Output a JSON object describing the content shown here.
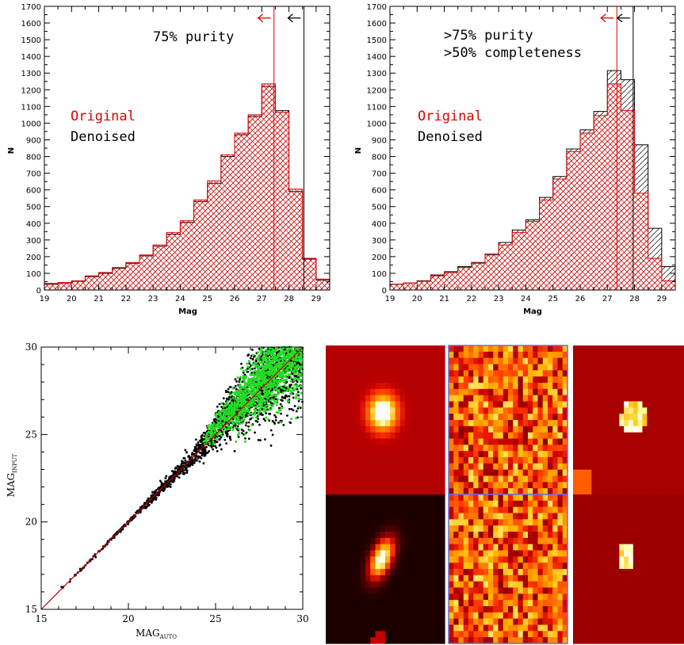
{
  "colors": {
    "original": "#e00000",
    "denoised": "#000000",
    "scatter_black": "#000000",
    "scatter_green": "#22dd22",
    "line": "#c00000"
  },
  "chart_data": [
    {
      "type": "bar",
      "subtype": "histogram",
      "xlabel": "Mag",
      "ylabel": "N",
      "xlim": [
        19,
        29.5
      ],
      "ylim": [
        0,
        1700
      ],
      "x_ticks": [
        "19",
        "20",
        "21",
        "22",
        "23",
        "24",
        "25",
        "26",
        "27",
        "28",
        "29"
      ],
      "y_ticks": [
        "0",
        "100",
        "200",
        "300",
        "400",
        "500",
        "600",
        "700",
        "800",
        "900",
        "1000",
        "1100",
        "1200",
        "1300",
        "1400",
        "1500",
        "1600",
        "1700"
      ],
      "bin_edges": [
        19,
        19.5,
        20,
        20.5,
        21,
        21.5,
        22,
        22.5,
        23,
        23.5,
        24,
        24.5,
        25,
        25.5,
        26,
        26.5,
        27,
        27.5,
        28,
        28.5,
        29,
        29.5
      ],
      "series": [
        {
          "name": "Original",
          "values": [
            40,
            45,
            55,
            85,
            105,
            135,
            165,
            210,
            270,
            345,
            415,
            540,
            655,
            810,
            940,
            1050,
            1235,
            1065,
            605,
            190,
            65
          ]
        },
        {
          "name": "Denoised",
          "values": [
            35,
            42,
            52,
            80,
            100,
            130,
            160,
            205,
            262,
            335,
            405,
            530,
            640,
            800,
            930,
            1040,
            1220,
            1075,
            590,
            185,
            60
          ]
        }
      ],
      "cutoffs": [
        {
          "series": "Original",
          "x": 27.45
        },
        {
          "series": "Denoised",
          "x": 28.55
        }
      ],
      "annotations": [
        "75% purity"
      ],
      "legend": [
        "Original",
        "Denoised"
      ]
    },
    {
      "type": "bar",
      "subtype": "histogram",
      "xlabel": "Mag",
      "ylabel": "N",
      "xlim": [
        19,
        29.5
      ],
      "ylim": [
        0,
        1700
      ],
      "x_ticks": [
        "19",
        "20",
        "21",
        "22",
        "23",
        "24",
        "25",
        "26",
        "27",
        "28",
        "29"
      ],
      "y_ticks": [
        "0",
        "100",
        "200",
        "300",
        "400",
        "500",
        "600",
        "700",
        "800",
        "900",
        "1000",
        "1100",
        "1200",
        "1300",
        "1400",
        "1500",
        "1600",
        "1700"
      ],
      "bin_edges": [
        19,
        19.5,
        20,
        20.5,
        21,
        21.5,
        22,
        22.5,
        23,
        23.5,
        24,
        24.5,
        25,
        25.5,
        26,
        26.5,
        27,
        27.5,
        28,
        28.5,
        29,
        29.5
      ],
      "series": [
        {
          "name": "Original",
          "values": [
            35,
            42,
            52,
            85,
            105,
            135,
            160,
            210,
            270,
            345,
            410,
            540,
            665,
            830,
            940,
            1045,
            1235,
            1075,
            580,
            190,
            55
          ]
        },
        {
          "name": "Denoised",
          "values": [
            35,
            42,
            55,
            90,
            110,
            140,
            165,
            215,
            285,
            360,
            420,
            555,
            680,
            845,
            960,
            1070,
            1315,
            1260,
            870,
            370,
            140
          ]
        }
      ],
      "cutoffs": [
        {
          "series": "Original",
          "x": 27.35
        },
        {
          "series": "Denoised",
          "x": 27.95
        }
      ],
      "annotations": [
        ">75% purity",
        ">50% completeness"
      ],
      "legend": [
        "Original",
        "Denoised"
      ]
    },
    {
      "type": "scatter",
      "xlabel": "MAG",
      "xlabel_sub": "AUTO",
      "ylabel": "MAG",
      "ylabel_sub": "INPUT",
      "xlim": [
        15,
        30
      ],
      "ylim": [
        15,
        30
      ],
      "x_ticks": [
        "15",
        "20",
        "25",
        "30"
      ],
      "y_ticks": [
        "15",
        "20",
        "25",
        "30"
      ],
      "reference_line": "y = x",
      "series": [
        {
          "color": "black",
          "trend": "y ≈ x, scatter grows faint-ward (15–30)"
        },
        {
          "color": "green",
          "trend": "y ≈ x, concentrated at x 25–30"
        }
      ]
    }
  ],
  "thumbnails": {
    "rows": 2,
    "cols": 3,
    "cells": [
      {
        "kind": "round-source"
      },
      {
        "kind": "noise"
      },
      {
        "kind": "blob"
      },
      {
        "kind": "elliptical-source"
      },
      {
        "kind": "noise"
      },
      {
        "kind": "blob-small"
      }
    ]
  }
}
